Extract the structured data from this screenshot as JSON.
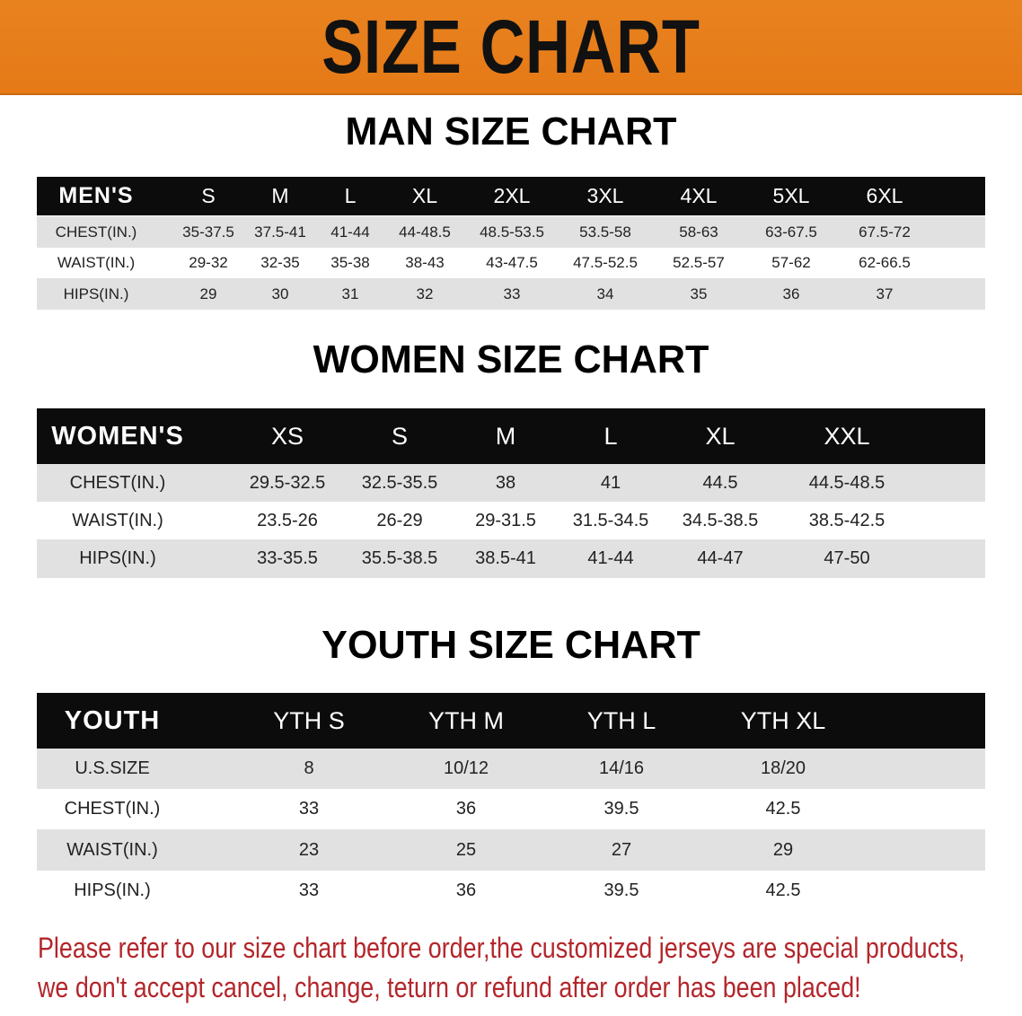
{
  "banner": {
    "title": "SIZE CHART",
    "color": "#e8801e"
  },
  "men": {
    "title": "MAN SIZE CHART",
    "header": [
      "MEN'S",
      "S",
      "M",
      "L",
      "XL",
      "2XL",
      "3XL",
      "4XL",
      "5XL",
      "6XL"
    ],
    "rows": [
      [
        "CHEST(IN.)",
        "35-37.5",
        "37.5-41",
        "41-44",
        "44-48.5",
        "48.5-53.5",
        "53.5-58",
        "58-63",
        "63-67.5",
        "67.5-72"
      ],
      [
        "WAIST(IN.)",
        "29-32",
        "32-35",
        "35-38",
        "38-43",
        "43-47.5",
        "47.5-52.5",
        "52.5-57",
        "57-62",
        "62-66.5"
      ],
      [
        "HIPS(IN.)",
        "29",
        "30",
        "31",
        "32",
        "33",
        "34",
        "35",
        "36",
        "37"
      ]
    ]
  },
  "women": {
    "title": "WOMEN SIZE CHART",
    "header": [
      "WOMEN'S",
      "XS",
      "S",
      "M",
      "L",
      "XL",
      "XXL"
    ],
    "rows": [
      [
        "CHEST(IN.)",
        "29.5-32.5",
        "32.5-35.5",
        "38",
        "41",
        "44.5",
        "44.5-48.5"
      ],
      [
        "WAIST(IN.)",
        "23.5-26",
        "26-29",
        "29-31.5",
        "31.5-34.5",
        "34.5-38.5",
        "38.5-42.5"
      ],
      [
        "HIPS(IN.)",
        "33-35.5",
        "35.5-38.5",
        "38.5-41",
        "41-44",
        "44-47",
        "47-50"
      ]
    ]
  },
  "youth": {
    "title": "YOUTH SIZE CHART",
    "header": [
      "YOUTH",
      "YTH S",
      "YTH M",
      "YTH L",
      "YTH XL"
    ],
    "rows": [
      [
        "U.S.SIZE",
        "8",
        "10/12",
        "14/16",
        "18/20"
      ],
      [
        "CHEST(IN.)",
        "33",
        "36",
        "39.5",
        "42.5"
      ],
      [
        "WAIST(IN.)",
        "23",
        "25",
        "27",
        "29"
      ],
      [
        "HIPS(IN.)",
        "33",
        "36",
        "39.5",
        "42.5"
      ]
    ]
  },
  "notice": {
    "line1": "Please refer to our size chart before order,the customized jerseys are special products,",
    "line2": "we don't accept cancel, change, teturn or refund after order has been placed!",
    "color": "#b3262b"
  }
}
